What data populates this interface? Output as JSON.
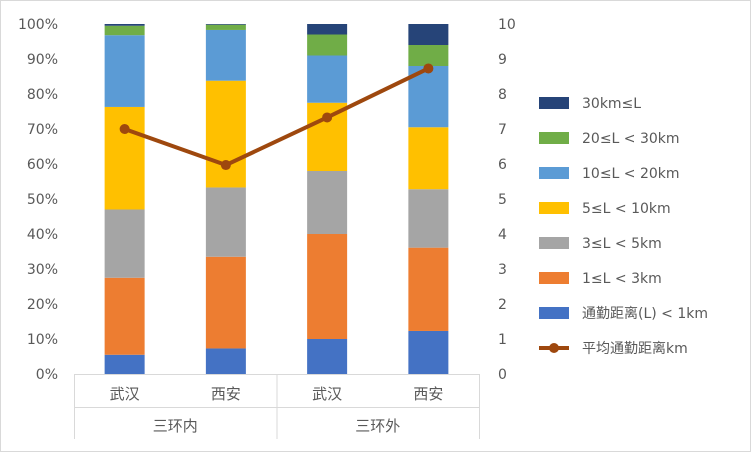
{
  "chart_data": {
    "type": "bar",
    "subtype": "stacked-100-percent-with-line",
    "title": "",
    "categories": [
      "武汉",
      "西安",
      "武汉",
      "西安"
    ],
    "groups": [
      {
        "label": "三环内",
        "span": [
          0,
          1
        ]
      },
      {
        "label": "三环外",
        "span": [
          2,
          3
        ]
      }
    ],
    "y_left": {
      "ticks": [
        "0%",
        "10%",
        "20%",
        "30%",
        "40%",
        "50%",
        "60%",
        "70%",
        "80%",
        "90%",
        "100%"
      ],
      "ylim": [
        0,
        100
      ]
    },
    "y_right": {
      "ticks": [
        "0",
        "1",
        "2",
        "3",
        "4",
        "5",
        "6",
        "7",
        "8",
        "9",
        "10"
      ],
      "ylim": [
        0,
        10
      ]
    },
    "series": [
      {
        "name": "通勤距离(L) < 1km",
        "color": "#4472C4",
        "values": [
          5.5,
          7.3,
          10.0,
          12.3
        ]
      },
      {
        "name": "1≤L < 3km",
        "color": "#ED7D31",
        "values": [
          22.0,
          26.2,
          30.0,
          23.8
        ]
      },
      {
        "name": "3≤L < 5km",
        "color": "#A5A5A5",
        "values": [
          19.5,
          19.8,
          18.0,
          16.7
        ]
      },
      {
        "name": "5≤L < 10km",
        "color": "#FFC000",
        "values": [
          29.3,
          30.5,
          19.5,
          17.7
        ]
      },
      {
        "name": "10≤L < 20km",
        "color": "#5B9BD5",
        "values": [
          20.5,
          14.5,
          13.5,
          17.5
        ]
      },
      {
        "name": "20≤L < 30km",
        "color": "#70AD47",
        "values": [
          2.7,
          1.5,
          6.0,
          6.0
        ]
      },
      {
        "name": "30km≤L",
        "color": "#264478",
        "values": [
          0.5,
          0.2,
          3.0,
          6.0
        ]
      }
    ],
    "line": {
      "name": "平均通勤距离km",
      "color": "#9E480E",
      "axis": "right",
      "values": [
        7.0,
        5.97,
        7.33,
        8.73
      ]
    },
    "legend_position": "right",
    "grid": false
  }
}
